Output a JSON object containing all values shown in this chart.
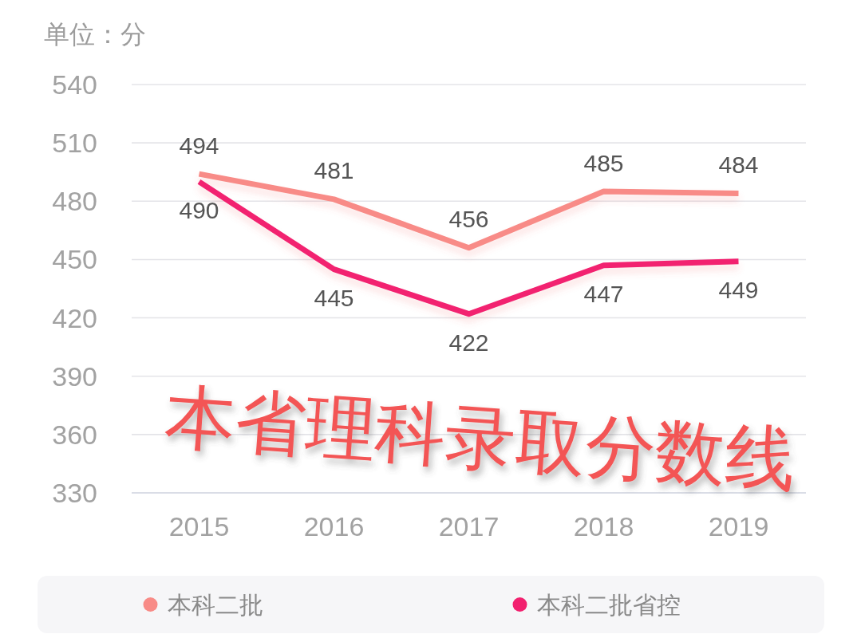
{
  "chart_data": {
    "type": "line",
    "title": "本省理科录取分数线",
    "ylabel": "单位：分",
    "categories": [
      "2015",
      "2016",
      "2017",
      "2018",
      "2019"
    ],
    "series": [
      {
        "name": "本科二批",
        "color": "#f88b87",
        "values": [
          494,
          481,
          456,
          485,
          484
        ]
      },
      {
        "name": "本科二批省控",
        "color": "#f2216f",
        "values": [
          490,
          445,
          422,
          447,
          449
        ]
      }
    ],
    "ylim": [
      330,
      540
    ],
    "yticks": [
      330,
      360,
      390,
      420,
      450,
      480,
      510,
      540
    ],
    "grid": "y",
    "legend": "bottom",
    "data_labels": true
  }
}
